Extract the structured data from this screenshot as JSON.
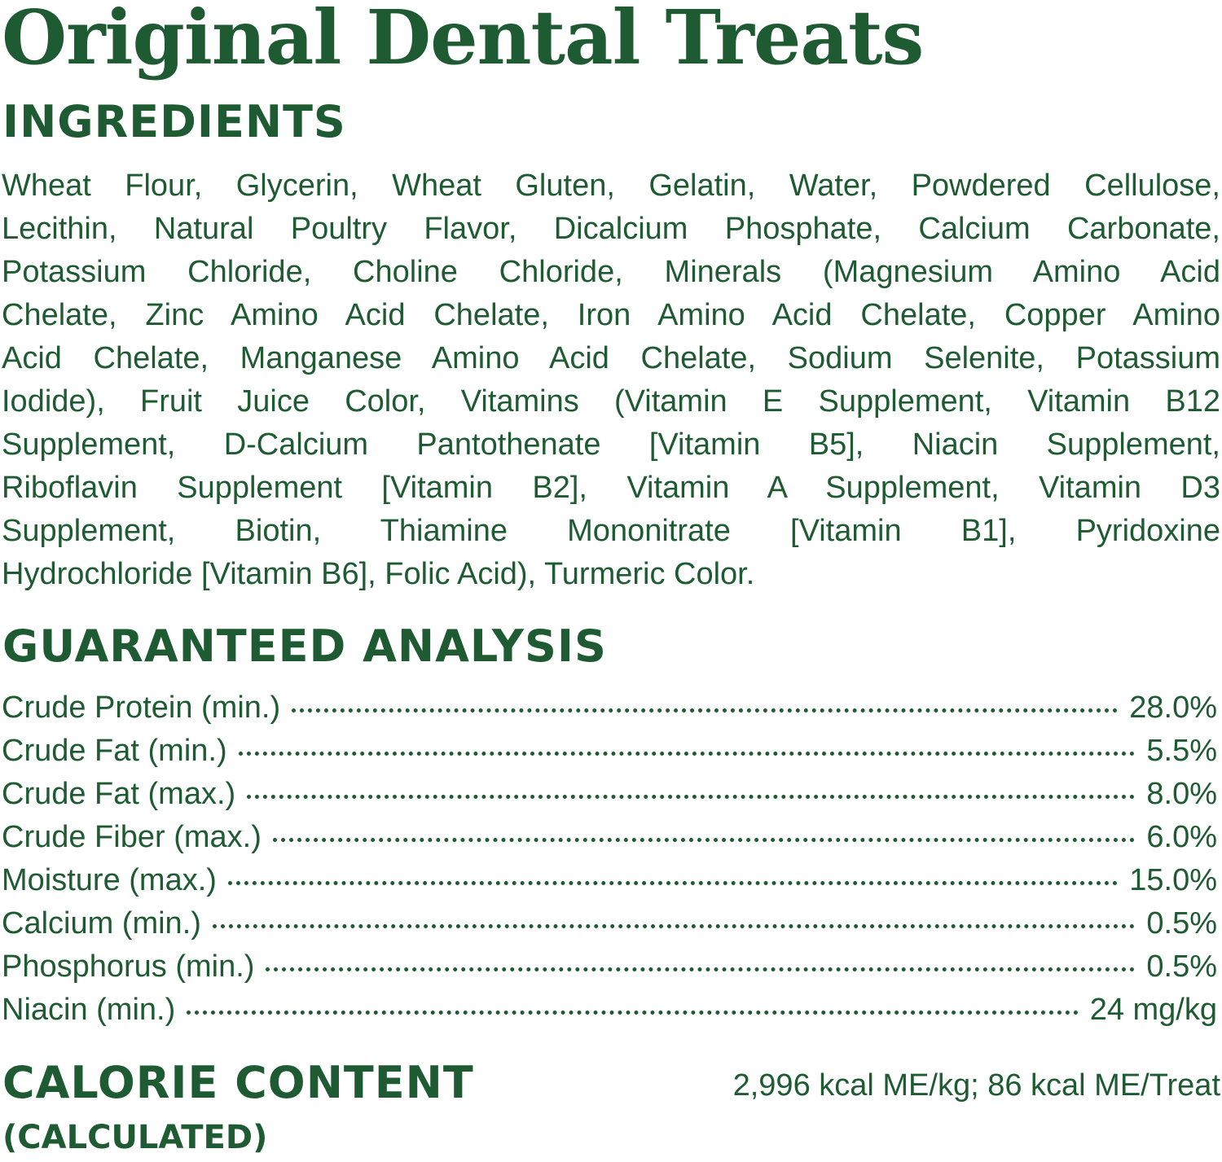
{
  "title": "Original Dental Treats",
  "ingredients": {
    "heading": "INGREDIENTS",
    "lines": [
      "Wheat Flour, Glycerin, Wheat Gluten, Gelatin, Water, Powdered Cellulose,",
      "Lecithin, Natural Poultry Flavor, Dicalcium Phosphate, Calcium Carbonate,",
      "Potassium Chloride, Choline Chloride, Minerals (Magnesium Amino Acid",
      "Chelate, Zinc Amino Acid Chelate, Iron Amino Acid Chelate, Copper Amino",
      "Acid Chelate, Manganese Amino Acid Chelate, Sodium Selenite, Potassium",
      "Iodide), Fruit Juice Color, Vitamins (Vitamin E Supplement, Vitamin B12",
      "Supplement, D-Calcium Pantothenate [Vitamin B5], Niacin Supplement,",
      "Riboflavin Supplement [Vitamin B2], Vitamin A Supplement, Vitamin D3",
      "Supplement, Biotin, Thiamine Mononitrate [Vitamin B1], Pyridoxine",
      "Hydrochloride [Vitamin B6], Folic Acid), Turmeric Color."
    ]
  },
  "guaranteed_analysis": {
    "heading": "GUARANTEED ANALYSIS",
    "rows": [
      {
        "label": "Crude Protein (min.)",
        "value": "28.0%"
      },
      {
        "label": "Crude Fat (min.)",
        "value": "5.5%"
      },
      {
        "label": "Crude Fat (max.)",
        "value": "8.0%"
      },
      {
        "label": "Crude Fiber (max.)",
        "value": "6.0%"
      },
      {
        "label": "Moisture (max.)",
        "value": "15.0%"
      },
      {
        "label": "Calcium (min.)",
        "value": "0.5%"
      },
      {
        "label": "Phosphorus (min.)",
        "value": "0.5%"
      },
      {
        "label": "Niacin (min.)",
        "value": "24 mg/kg"
      }
    ]
  },
  "calorie_content": {
    "heading": "CALORIE CONTENT",
    "subheading": "(CALCULATED)",
    "value": "2,996 kcal ME/kg; 86 kcal ME/Treat"
  },
  "colors": {
    "brand_green": "#1e5a32"
  }
}
